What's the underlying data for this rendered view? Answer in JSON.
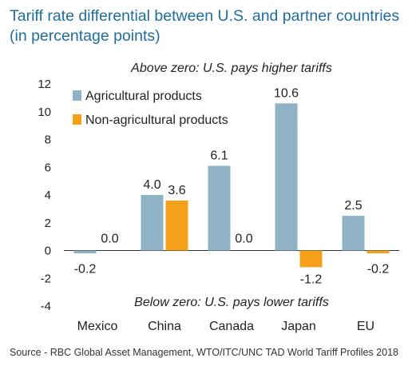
{
  "chart_data": {
    "type": "bar",
    "title": "Tariff rate differential between U.S. and partner countries (in percentage points)",
    "categories": [
      "Mexico",
      "China",
      "Canada",
      "Japan",
      "EU"
    ],
    "series": [
      {
        "name": "Agricultural products",
        "color": "#8fb3c4",
        "values": [
          -0.2,
          4.0,
          6.1,
          10.6,
          2.5
        ]
      },
      {
        "name": "Non-agricultural products",
        "color": "#f5a01a",
        "values": [
          0.0,
          3.6,
          0.0,
          -1.2,
          -0.2
        ]
      }
    ],
    "data_labels": [
      [
        "-0.2",
        "4.0",
        "6.1",
        "10.6",
        "2.5"
      ],
      [
        "0.0",
        "3.6",
        "0.0",
        "-1.2",
        "-0.2"
      ]
    ],
    "ylim": [
      -4,
      12
    ],
    "yticks": [
      -4,
      -2,
      0,
      2,
      4,
      6,
      8,
      10,
      12
    ],
    "annotation_top": "Above zero: U.S. pays higher tariffs",
    "annotation_bottom": "Below zero: U.S. pays lower tariffs",
    "legend_position": "top-left",
    "grid": false
  },
  "source": "Source - RBC Global Asset Management, WTO/ITC/UNC TAD World Tariff Profiles 2018"
}
